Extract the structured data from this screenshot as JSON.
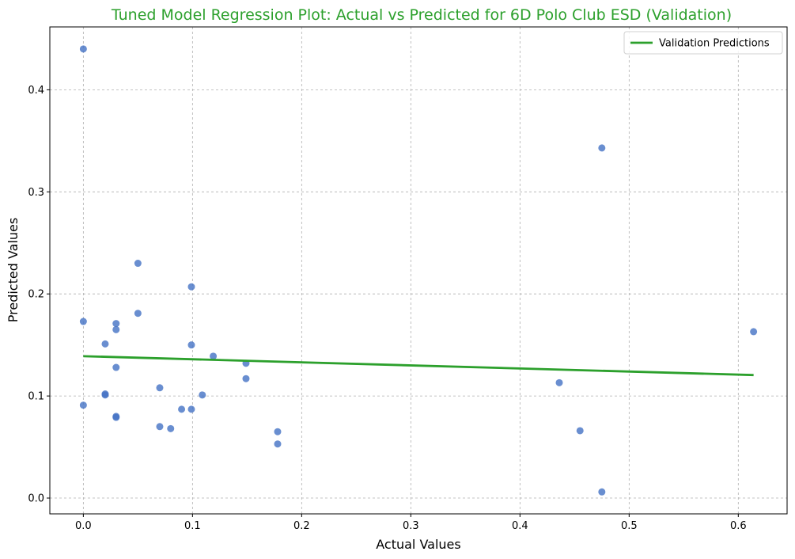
{
  "chart_data": {
    "type": "scatter",
    "title": "Tuned Model Regression Plot: Actual vs Predicted for 6D Polo Club ESD (Validation)",
    "xlabel": "Actual Values",
    "ylabel": "Predicted Values",
    "xlim": [
      -0.0307,
      0.6447
    ],
    "ylim": [
      -0.0155,
      0.4616
    ],
    "xticks": [
      0.0,
      0.1,
      0.2,
      0.3,
      0.4,
      0.5,
      0.6
    ],
    "xtick_labels": [
      "0.0",
      "0.1",
      "0.2",
      "0.3",
      "0.4",
      "0.5",
      "0.6"
    ],
    "yticks": [
      0.0,
      0.1,
      0.2,
      0.3,
      0.4
    ],
    "ytick_labels": [
      "0.0",
      "0.1",
      "0.2",
      "0.3",
      "0.4"
    ],
    "grid": true,
    "legend_position": "top-right",
    "points": {
      "color": "#4472c4",
      "x": [
        0.0,
        0.0,
        0.0,
        0.02,
        0.02,
        0.02,
        0.03,
        0.03,
        0.03,
        0.03,
        0.03,
        0.05,
        0.05,
        0.07,
        0.07,
        0.08,
        0.09,
        0.099,
        0.099,
        0.099,
        0.109,
        0.119,
        0.149,
        0.149,
        0.178,
        0.178,
        0.436,
        0.455,
        0.475,
        0.475,
        0.614
      ],
      "y": [
        0.44,
        0.173,
        0.091,
        0.151,
        0.102,
        0.101,
        0.171,
        0.165,
        0.128,
        0.08,
        0.079,
        0.23,
        0.181,
        0.108,
        0.07,
        0.068,
        0.087,
        0.207,
        0.15,
        0.087,
        0.101,
        0.139,
        0.132,
        0.117,
        0.065,
        0.053,
        0.113,
        0.066,
        0.343,
        0.006,
        0.163
      ]
    },
    "series": [
      {
        "name": "Validation Predictions",
        "type": "line",
        "color": "#2ca02c",
        "x": [
          0.0,
          0.614
        ],
        "y": [
          0.139,
          0.1205
        ]
      }
    ],
    "title_color": "#2ca02c"
  }
}
